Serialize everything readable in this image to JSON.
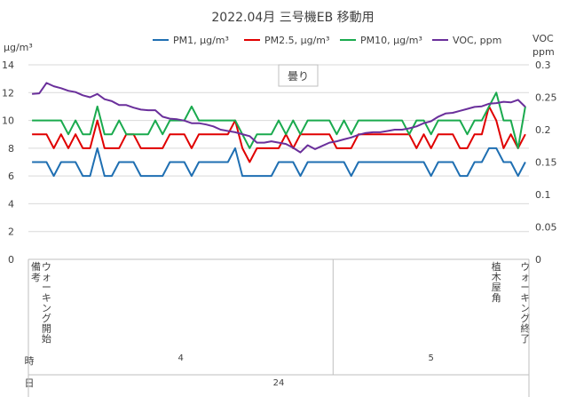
{
  "chart_data": {
    "type": "line",
    "title": "2022.04月 三号機EB 移動用",
    "left_axis": {
      "unit_label": "μg/m³",
      "min": 0,
      "max": 14,
      "step": 2
    },
    "right_axis": {
      "unit_label": "VOC\nppm",
      "min": 0,
      "max": 0.3,
      "step": 0.05
    },
    "annotation": "曇り",
    "legend_position": "top",
    "series": [
      {
        "name": "PM1, μg/m³",
        "axis": "left",
        "color": "#1f6fb2",
        "values": [
          7,
          7,
          7,
          6,
          7,
          7,
          7,
          6,
          6,
          8,
          6,
          6,
          7,
          7,
          7,
          6,
          6,
          6,
          6,
          7,
          7,
          7,
          6,
          7,
          7,
          7,
          7,
          7,
          8,
          6,
          6,
          6,
          6,
          6,
          7,
          7,
          7,
          6,
          7,
          7,
          7,
          7,
          7,
          7,
          6,
          7,
          7,
          7,
          7,
          7,
          7,
          7,
          7,
          7,
          7,
          6,
          7,
          7,
          7,
          6,
          6,
          7,
          7,
          8,
          8,
          7,
          7,
          6,
          7
        ]
      },
      {
        "name": "PM2.5, μg/m³",
        "axis": "left",
        "color": "#e00000",
        "values": [
          9,
          9,
          9,
          8,
          9,
          8,
          9,
          8,
          8,
          10,
          8,
          8,
          8,
          9,
          9,
          8,
          8,
          8,
          8,
          9,
          9,
          9,
          8,
          9,
          9,
          9,
          9,
          9,
          10,
          8,
          7,
          8,
          8,
          8,
          8,
          9,
          8,
          9,
          9,
          9,
          9,
          9,
          8,
          8,
          8,
          9,
          9,
          9,
          9,
          9,
          9,
          9,
          9,
          8,
          9,
          8,
          9,
          9,
          9,
          8,
          8,
          9,
          9,
          11,
          10,
          8,
          9,
          8,
          9
        ]
      },
      {
        "name": "PM10, μg/m³",
        "axis": "left",
        "color": "#1aaa4e",
        "values": [
          10,
          10,
          10,
          10,
          10,
          9,
          10,
          9,
          9,
          11,
          9,
          9,
          10,
          9,
          9,
          9,
          9,
          10,
          9,
          10,
          10,
          10,
          11,
          10,
          10,
          10,
          10,
          10,
          10,
          9,
          8,
          9,
          9,
          9,
          10,
          9,
          10,
          9,
          10,
          10,
          10,
          10,
          9,
          10,
          9,
          10,
          10,
          10,
          10,
          10,
          10,
          10,
          9,
          10,
          10,
          9,
          10,
          10,
          10,
          10,
          9,
          10,
          10,
          11,
          12,
          10,
          10,
          8,
          11
        ]
      },
      {
        "name": "VOC, ppm",
        "axis": "right",
        "color": "#6a2f9b",
        "values": [
          0.255,
          0.256,
          0.272,
          0.267,
          0.264,
          0.26,
          0.258,
          0.253,
          0.25,
          0.255,
          0.247,
          0.244,
          0.238,
          0.238,
          0.234,
          0.231,
          0.23,
          0.23,
          0.22,
          0.217,
          0.216,
          0.214,
          0.21,
          0.21,
          0.208,
          0.205,
          0.2,
          0.198,
          0.196,
          0.193,
          0.19,
          0.18,
          0.18,
          0.182,
          0.18,
          0.178,
          0.172,
          0.165,
          0.176,
          0.17,
          0.175,
          0.18,
          0.182,
          0.185,
          0.188,
          0.192,
          0.195,
          0.196,
          0.196,
          0.198,
          0.2,
          0.2,
          0.202,
          0.205,
          0.21,
          0.213,
          0.22,
          0.225,
          0.226,
          0.229,
          0.232,
          0.235,
          0.236,
          0.24,
          0.241,
          0.243,
          0.242,
          0.246,
          0.235
        ]
      }
    ],
    "x_axis": {
      "row_labels": {
        "remarks": "備考",
        "hour": "時",
        "day": "日"
      },
      "remarks": [
        {
          "index": 0,
          "text": ""
        },
        {
          "index": 2,
          "text": "ウォーキング開始"
        },
        {
          "index": 64,
          "text": "植木屋角"
        },
        {
          "index": 68,
          "text": "ウォーキング終了"
        }
      ],
      "hours": [
        {
          "label": "4",
          "start": 0,
          "end": 42
        },
        {
          "label": "5",
          "start": 42,
          "end": 69
        }
      ],
      "days": [
        {
          "label": "24",
          "start": 0,
          "end": 69
        }
      ]
    }
  }
}
